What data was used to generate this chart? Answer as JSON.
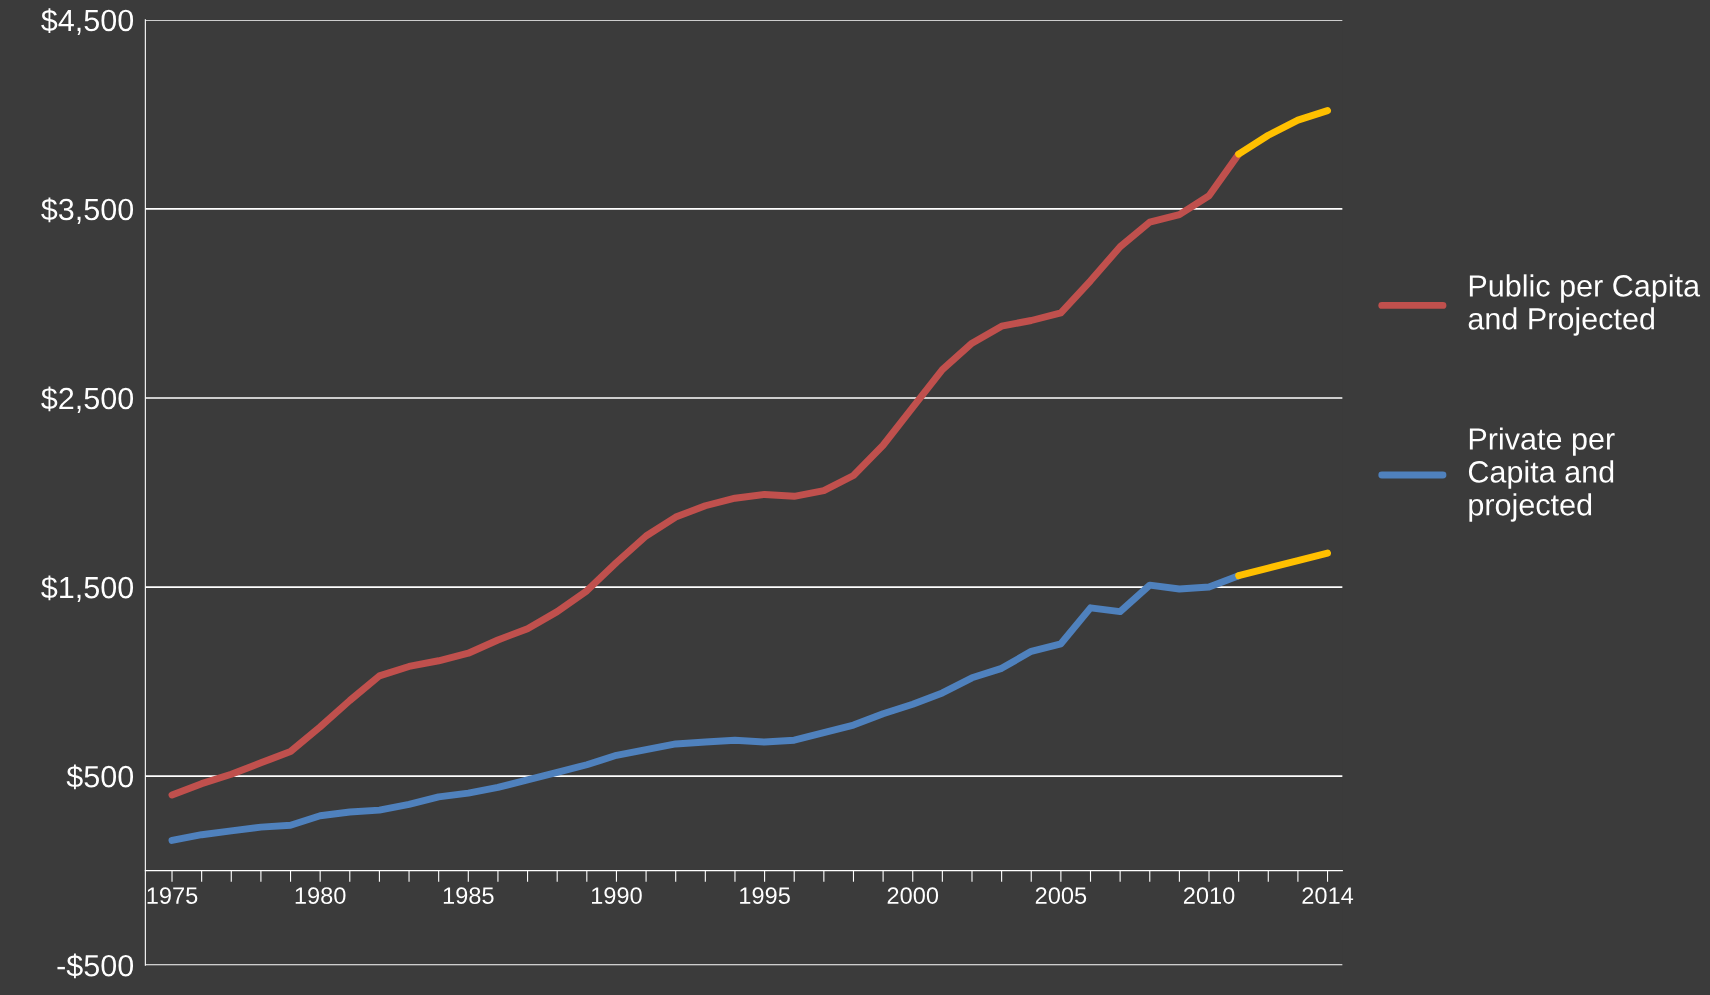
{
  "chart_data": {
    "type": "line",
    "categories": [
      "1975",
      null,
      null,
      null,
      null,
      "1980",
      null,
      null,
      null,
      null,
      "1985",
      null,
      null,
      null,
      null,
      "1990",
      null,
      null,
      null,
      null,
      "1995",
      null,
      null,
      null,
      null,
      "2000",
      null,
      null,
      null,
      null,
      "2005",
      null,
      null,
      null,
      null,
      "2010",
      null,
      null,
      null,
      "2014"
    ],
    "series": [
      {
        "name": "Public per Capita\nand Projected",
        "color": "#c0504d",
        "values": [
          400,
          460,
          510,
          570,
          630,
          760,
          900,
          1030,
          1080,
          1110,
          1150,
          1220,
          1280,
          1370,
          1480,
          1630,
          1770,
          1870,
          1930,
          1970,
          1990,
          1980,
          2010,
          2090,
          2250,
          2450,
          2650,
          2790,
          2880,
          2910,
          2950,
          3120,
          3300,
          3430,
          3470,
          3570,
          3790,
          null,
          null,
          null
        ]
      },
      {
        "color": "#ffc000",
        "values": [
          null,
          null,
          null,
          null,
          null,
          null,
          null,
          null,
          null,
          null,
          null,
          null,
          null,
          null,
          null,
          null,
          null,
          null,
          null,
          null,
          null,
          null,
          null,
          null,
          null,
          null,
          null,
          null,
          null,
          null,
          null,
          null,
          null,
          null,
          null,
          null,
          3790,
          3890,
          3970,
          4020
        ]
      },
      {
        "name": "Private per\nCapita and\nprojected",
        "color": "#4f81bd",
        "values": [
          160,
          190,
          210,
          230,
          240,
          290,
          310,
          320,
          350,
          390,
          410,
          440,
          480,
          520,
          560,
          610,
          640,
          670,
          680,
          690,
          680,
          690,
          730,
          770,
          830,
          880,
          940,
          1020,
          1070,
          1160,
          1200,
          1390,
          1370,
          1510,
          1490,
          1500,
          1560,
          null,
          null,
          null
        ]
      },
      {
        "color": "#ffc000",
        "values": [
          null,
          null,
          null,
          null,
          null,
          null,
          null,
          null,
          null,
          null,
          null,
          null,
          null,
          null,
          null,
          null,
          null,
          null,
          null,
          null,
          null,
          null,
          null,
          null,
          null,
          null,
          null,
          null,
          null,
          null,
          null,
          null,
          null,
          null,
          null,
          null,
          1560,
          1600,
          1640,
          1680
        ]
      }
    ],
    "ylim": [
      -500,
      4500
    ],
    "yticks": [
      {
        "value": -500,
        "label": "-$500"
      },
      {
        "value": 500,
        "label": "$500"
      },
      {
        "value": 1500,
        "label": "$1,500"
      },
      {
        "value": 2500,
        "label": "$2,500"
      },
      {
        "value": 3500,
        "label": "$3,500"
      },
      {
        "value": 4500,
        "label": "$4,500"
      }
    ],
    "grid": "y",
    "legend": "right",
    "line_style": "solid",
    "marker": "none"
  }
}
